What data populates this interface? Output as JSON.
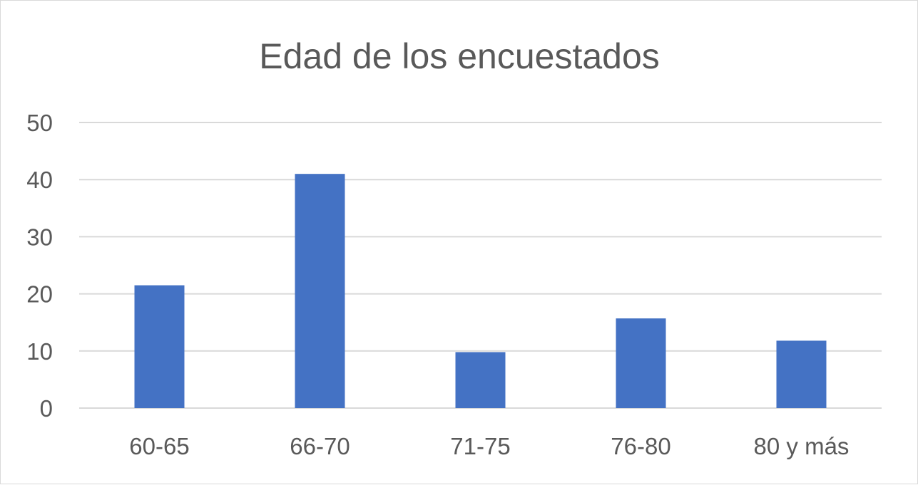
{
  "chart_data": {
    "type": "bar",
    "title": "Edad de los encuestados",
    "xlabel": "",
    "ylabel": "",
    "categories": [
      "60-65",
      "66-70",
      "71-75",
      "76-80",
      "80 y más"
    ],
    "values": [
      21.5,
      41,
      9.8,
      15.7,
      11.8
    ],
    "ylim": [
      0,
      50
    ],
    "yticks": [
      "0",
      "10",
      "20",
      "30",
      "40",
      "50"
    ],
    "grid": true,
    "legend": "none",
    "bar_color": "#4472C4"
  }
}
